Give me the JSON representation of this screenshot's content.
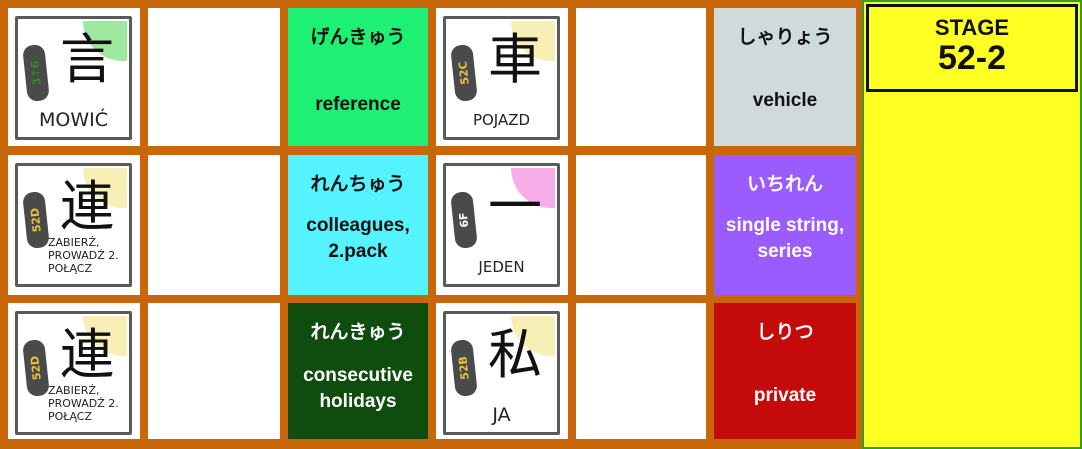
{
  "stage": {
    "title": "STAGE",
    "number": "52-2"
  },
  "rows": [
    {
      "kanji_card_1": {
        "kanji": "言",
        "code": "3↑6",
        "meaning": "MOWIĆ",
        "badge_color": "#2e8b1e"
      },
      "vocab_tile": {
        "kana": "げんきゅう",
        "english": "reference",
        "bg": "#1ef074",
        "fg": "#111111"
      },
      "kanji_card_2": {
        "kanji": "車",
        "code": "52C",
        "meaning": "POJAZD",
        "badge_color": "#e8c23a"
      },
      "vocab_tile_2": {
        "kana": "しゃりょう",
        "english": "vehicle",
        "bg": "#cfdbdb",
        "fg": "#111111"
      }
    },
    {
      "kanji_card_1": {
        "kanji": "連",
        "code": "52D",
        "meaning": "ZABIERŹ, PROWADŹ 2. POŁĄCZ",
        "badge_color": "#e8c23a"
      },
      "vocab_tile": {
        "kana": "れんちゅう",
        "english": "colleagues, 2.pack",
        "bg": "#55f2ff",
        "fg": "#111111"
      },
      "kanji_card_2": {
        "kanji": "一",
        "code": "6F",
        "meaning": "JEDEN",
        "badge_color": "#ffffff"
      },
      "vocab_tile_2": {
        "kana": "いちれん",
        "english": "single string, series",
        "bg": "#9a5cff",
        "fg": "#ffffff"
      }
    },
    {
      "kanji_card_1": {
        "kanji": "連",
        "code": "52D",
        "meaning": "ZABIERŹ, PROWADŹ 2. POŁĄCZ",
        "badge_color": "#e8c23a"
      },
      "vocab_tile": {
        "kana": "れんきゅう",
        "english": "consecutive holidays",
        "bg": "#0f4d0f",
        "fg": "#ffffff"
      },
      "kanji_card_2": {
        "kanji": "私",
        "code": "52B",
        "meaning": "JA",
        "badge_color": "#e8c23a"
      },
      "vocab_tile_2": {
        "kana": "しりつ",
        "english": "private",
        "bg": "#c40a0a",
        "fg": "#ffffff"
      }
    }
  ]
}
